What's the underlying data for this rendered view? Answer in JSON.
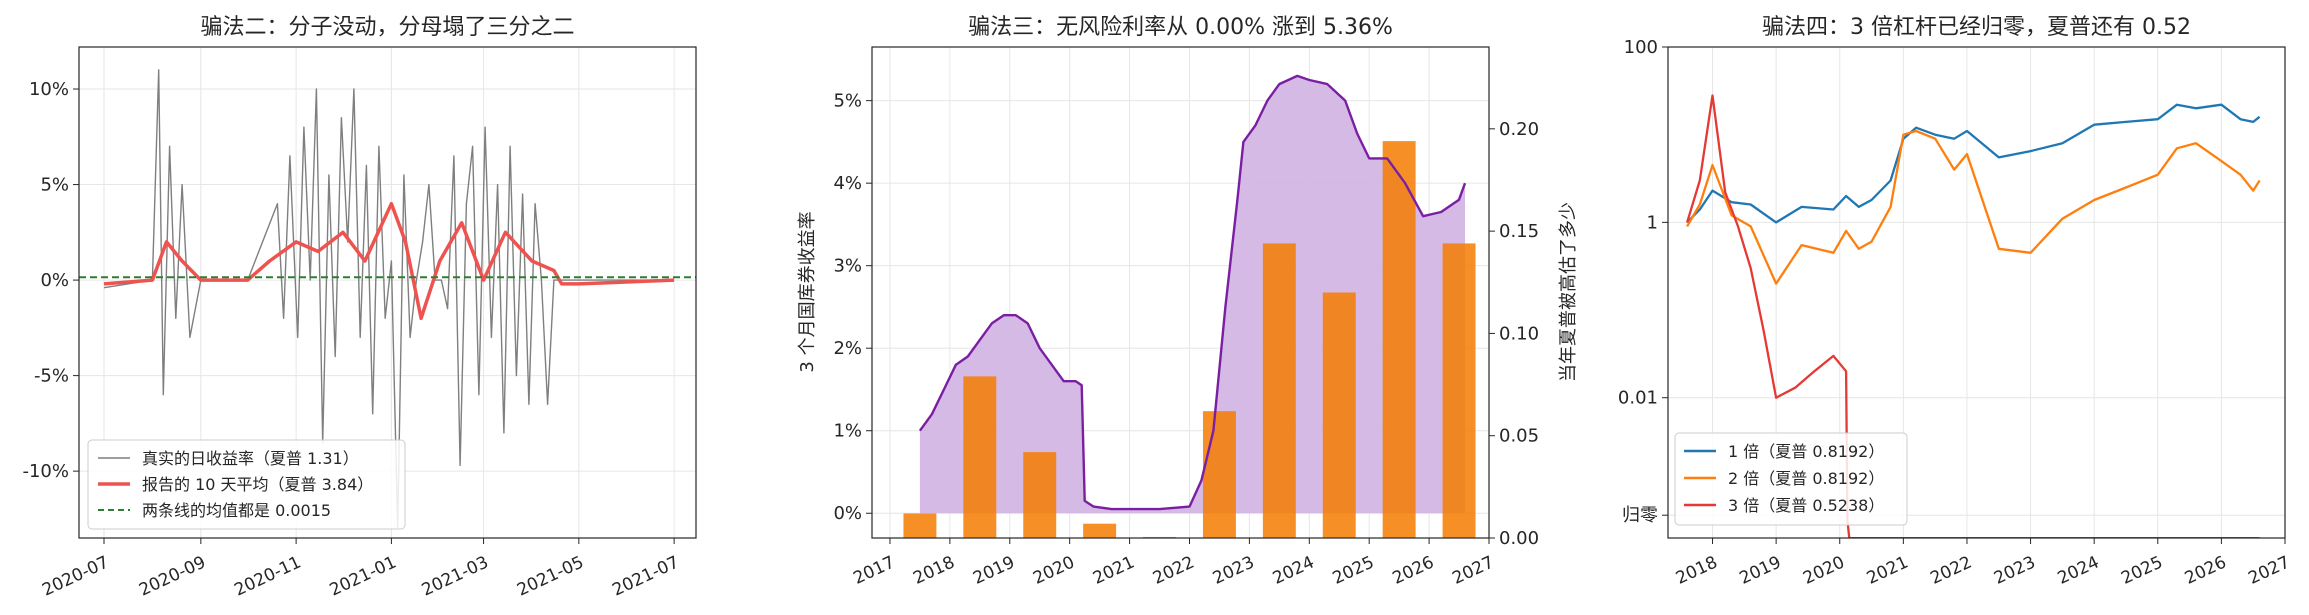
{
  "chart_data": [
    {
      "type": "line",
      "title": "骗法二：分子没动，分母塌了三分之二",
      "xlabel": "",
      "ylabel": "",
      "x_ticks": [
        "2020-07",
        "2020-09",
        "2020-11",
        "2021-01",
        "2021-03",
        "2021-05",
        "2021-07"
      ],
      "x_range": [
        "2020-06-15",
        "2021-07-15"
      ],
      "y_ticks": [
        "10%",
        "5%",
        "0%",
        "-5%",
        "-10%"
      ],
      "ylim": [
        -0.135,
        0.122
      ],
      "grid": true,
      "legend_position": "lower-left",
      "series": [
        {
          "name": "真实的日收益率（夏普 1.31）",
          "color": "#7f7f7f",
          "x": [
            "2020-07-01",
            "2020-08-01",
            "2020-08-05",
            "2020-08-08",
            "2020-08-12",
            "2020-08-16",
            "2020-08-20",
            "2020-08-25",
            "2020-09-01",
            "2020-10-01",
            "2020-10-20",
            "2020-10-24",
            "2020-10-28",
            "2020-11-02",
            "2020-11-06",
            "2020-11-10",
            "2020-11-14",
            "2020-11-18",
            "2020-11-22",
            "2020-11-26",
            "2020-11-30",
            "2020-12-04",
            "2020-12-08",
            "2020-12-12",
            "2020-12-16",
            "2020-12-20",
            "2020-12-24",
            "2020-12-28",
            "2021-01-01",
            "2021-01-05",
            "2021-01-09",
            "2021-01-13",
            "2021-01-17",
            "2021-01-21",
            "2021-01-25",
            "2021-01-29",
            "2021-02-02",
            "2021-02-06",
            "2021-02-10",
            "2021-02-14",
            "2021-02-18",
            "2021-02-22",
            "2021-02-26",
            "2021-03-02",
            "2021-03-06",
            "2021-03-10",
            "2021-03-14",
            "2021-03-18",
            "2021-03-22",
            "2021-03-26",
            "2021-03-30",
            "2021-04-03",
            "2021-04-07",
            "2021-04-11",
            "2021-04-15",
            "2021-04-20",
            "2021-05-01",
            "2021-07-01"
          ],
          "values": [
            -0.004,
            0.0,
            0.11,
            -0.06,
            0.07,
            -0.02,
            0.05,
            -0.03,
            0.0,
            0.0,
            0.04,
            -0.02,
            0.065,
            -0.03,
            0.08,
            0.0,
            0.1,
            -0.085,
            0.055,
            -0.04,
            0.085,
            0.02,
            0.1,
            -0.03,
            0.06,
            -0.07,
            0.07,
            -0.02,
            0.01,
            -0.13,
            0.055,
            -0.03,
            0.0,
            0.02,
            0.05,
            0.0,
            0.0,
            -0.015,
            0.065,
            -0.097,
            0.04,
            0.07,
            -0.06,
            0.08,
            -0.03,
            0.05,
            -0.08,
            0.07,
            -0.05,
            0.045,
            -0.065,
            0.04,
            0.0,
            -0.065,
            0.0,
            0.0,
            0.0,
            0.0
          ]
        },
        {
          "name": "报告的 10 天平均（夏普 3.84）",
          "color": "#ef5350",
          "x": [
            "2020-07-01",
            "2020-08-01",
            "2020-08-10",
            "2020-08-20",
            "2020-09-01",
            "2020-10-01",
            "2020-10-15",
            "2020-11-01",
            "2020-11-15",
            "2020-12-01",
            "2020-12-15",
            "2021-01-01",
            "2021-01-10",
            "2021-01-20",
            "2021-02-01",
            "2021-02-15",
            "2021-03-01",
            "2021-03-15",
            "2021-04-01",
            "2021-04-15",
            "2021-04-20",
            "2021-05-01",
            "2021-07-01"
          ],
          "values": [
            -0.002,
            0.0,
            0.02,
            0.01,
            0.0,
            0.0,
            0.01,
            0.02,
            0.015,
            0.025,
            0.01,
            0.04,
            0.02,
            -0.02,
            0.01,
            0.03,
            0.0,
            0.025,
            0.01,
            0.005,
            -0.002,
            -0.002,
            0.0
          ]
        },
        {
          "name": "两条线的均值都是 0.0015",
          "color": "#2e7d32",
          "dashed": true,
          "x": [
            "2020-06-15",
            "2021-07-15"
          ],
          "values": [
            0.0015,
            0.0015
          ]
        }
      ]
    },
    {
      "type": "area",
      "title": "骗法三：无风险利率从 0.00% 涨到 5.36%",
      "xlabel": "",
      "ylabel": "3 个月国库券收益率",
      "ylabel_right": "当年夏普被高估了多少",
      "x_ticks": [
        "2017",
        "2018",
        "2019",
        "2020",
        "2021",
        "2022",
        "2023",
        "2024",
        "2025",
        "2026",
        "2027"
      ],
      "xlim": [
        2016.7,
        2027.0
      ],
      "y_ticks": [
        "0%",
        "1%",
        "2%",
        "3%",
        "4%",
        "5%"
      ],
      "ylim": [
        -0.003,
        0.0565
      ],
      "y2_ticks": [
        "0.00",
        "0.05",
        "0.10",
        "0.15",
        "0.20"
      ],
      "y2lim": [
        0.0,
        0.24
      ],
      "grid": true,
      "series": [
        {
          "name": "3 个月国库券收益率",
          "type": "area",
          "color": "#7b1fa2",
          "fill": "#d1b3e3",
          "x": [
            2017.5,
            2017.7,
            2017.9,
            2018.1,
            2018.3,
            2018.5,
            2018.7,
            2018.9,
            2019.1,
            2019.3,
            2019.5,
            2019.7,
            2019.9,
            2020.1,
            2020.2,
            2020.25,
            2020.4,
            2020.7,
            2021.0,
            2021.5,
            2022.0,
            2022.2,
            2022.4,
            2022.6,
            2022.8,
            2022.9,
            2023.1,
            2023.3,
            2023.5,
            2023.8,
            2024.0,
            2024.3,
            2024.6,
            2024.8,
            2025.0,
            2025.3,
            2025.6,
            2025.9,
            2026.2,
            2026.5,
            2026.6
          ],
          "values": [
            0.01,
            0.012,
            0.015,
            0.018,
            0.019,
            0.021,
            0.023,
            0.024,
            0.024,
            0.023,
            0.02,
            0.018,
            0.016,
            0.016,
            0.0155,
            0.0015,
            0.0008,
            0.0005,
            0.0005,
            0.0005,
            0.0008,
            0.004,
            0.01,
            0.025,
            0.038,
            0.045,
            0.047,
            0.05,
            0.052,
            0.053,
            0.0525,
            0.052,
            0.05,
            0.046,
            0.043,
            0.043,
            0.04,
            0.036,
            0.0365,
            0.038,
            0.04
          ]
        },
        {
          "name": "当年夏普被高估了多少",
          "type": "bar",
          "axis": "right",
          "color": "#f57c00",
          "x": [
            2017.5,
            2018.5,
            2019.5,
            2020.5,
            2021.5,
            2022.5,
            2023.5,
            2024.5,
            2025.5,
            2026.5
          ],
          "values": [
            0.012,
            0.079,
            0.042,
            0.007,
            0.0005,
            0.062,
            0.144,
            0.12,
            0.194,
            0.144
          ]
        }
      ]
    },
    {
      "type": "line",
      "title": "骗法四：3 倍杠杆已经归零，夏普还有 0.52",
      "xlabel": "",
      "ylabel": "",
      "x_ticks": [
        "2018",
        "2019",
        "2020",
        "2021",
        "2022",
        "2023",
        "2024",
        "2025",
        "2026",
        "2027"
      ],
      "xlim": [
        2017.3,
        2027.0
      ],
      "y_scale": "log",
      "y_ticks": [
        "100",
        "1",
        "0.01",
        "归零"
      ],
      "ylim_log10": [
        -3.6,
        2.0
      ],
      "grid": true,
      "legend_position": "lower-left",
      "series": [
        {
          "name": "1 倍（夏普 0.8192）",
          "color": "#1f77b4",
          "x": [
            2017.6,
            2017.8,
            2018.0,
            2018.3,
            2018.6,
            2019.0,
            2019.4,
            2019.9,
            2020.1,
            2020.3,
            2020.5,
            2020.8,
            2021.0,
            2021.2,
            2021.5,
            2021.8,
            2022.0,
            2022.5,
            2023.0,
            2023.5,
            2024.0,
            2024.5,
            2025.0,
            2025.3,
            2025.6,
            2026.0,
            2026.3,
            2026.5,
            2026.6
          ],
          "values": [
            1.0,
            1.4,
            2.3,
            1.7,
            1.6,
            1.0,
            1.5,
            1.4,
            2.0,
            1.5,
            1.8,
            3.0,
            9.0,
            12,
            10,
            9,
            11,
            5.5,
            6.5,
            8,
            13,
            14,
            15,
            22,
            20,
            22,
            15,
            14,
            16
          ]
        },
        {
          "name": "2 倍（夏普 0.8192）",
          "color": "#ff7f0e",
          "x": [
            2017.6,
            2017.8,
            2018.0,
            2018.3,
            2018.6,
            2019.0,
            2019.4,
            2019.9,
            2020.1,
            2020.3,
            2020.5,
            2020.8,
            2021.0,
            2021.2,
            2021.5,
            2021.8,
            2022.0,
            2022.5,
            2023.0,
            2023.5,
            2024.0,
            2024.5,
            2025.0,
            2025.3,
            2025.6,
            2026.0,
            2026.3,
            2026.5,
            2026.6
          ],
          "values": [
            0.9,
            1.6,
            4.5,
            1.2,
            0.9,
            0.2,
            0.55,
            0.45,
            0.8,
            0.5,
            0.6,
            1.5,
            10,
            11,
            9,
            4,
            6,
            0.5,
            0.45,
            1.1,
            1.8,
            2.5,
            3.5,
            7,
            8,
            5,
            3.5,
            2.3,
            3
          ]
        },
        {
          "name": "3 倍（夏普 0.5238）",
          "color": "#e53935",
          "x": [
            2017.6,
            2017.8,
            2018.0,
            2018.2,
            2018.4,
            2018.6,
            2018.8,
            2019.0,
            2019.3,
            2019.6,
            2019.9,
            2020.1,
            2020.12,
            2020.15,
            2026.6
          ],
          "values": [
            1.0,
            3.0,
            28,
            2.2,
            0.9,
            0.3,
            0.06,
            0.01,
            0.013,
            0.02,
            0.03,
            0.02,
            0.0004,
            0.00025,
            0.00025
          ]
        }
      ]
    }
  ]
}
